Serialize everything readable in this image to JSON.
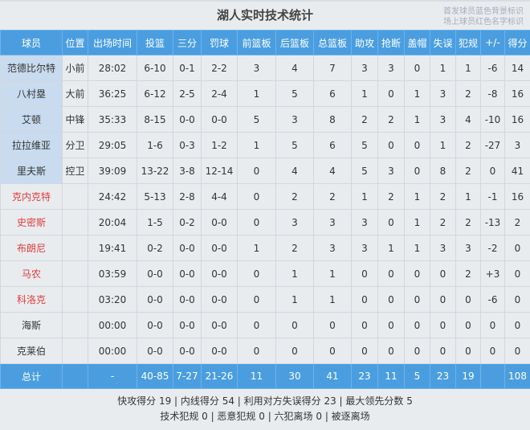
{
  "title": "湖人实时技术统计",
  "legend_note": [
    "首发球员蓝色背景标识",
    "场上球员红色名字标识"
  ],
  "colors": {
    "header": "#4a9ee0",
    "starter_bg": "#c8dbef",
    "oncourt_name": "#e03c3c"
  },
  "columns": [
    "球员",
    "位置",
    "出场时间",
    "投篮",
    "三分",
    "罚球",
    "前篮板",
    "后篮板",
    "总篮板",
    "助攻",
    "抢断",
    "盖帽",
    "失误",
    "犯规",
    "+/-",
    "得分"
  ],
  "players": [
    {
      "starter": true,
      "oncourt": false,
      "cells": [
        "范德比尔特",
        "小前",
        "28:02",
        "6-10",
        "0-1",
        "2-2",
        "3",
        "4",
        "7",
        "3",
        "3",
        "0",
        "1",
        "1",
        "-6",
        "14"
      ]
    },
    {
      "starter": true,
      "oncourt": false,
      "cells": [
        "八村塁",
        "大前",
        "36:25",
        "6-12",
        "2-5",
        "2-4",
        "1",
        "5",
        "6",
        "1",
        "0",
        "1",
        "3",
        "2",
        "-8",
        "16"
      ]
    },
    {
      "starter": true,
      "oncourt": false,
      "cells": [
        "艾顿",
        "中锋",
        "35:33",
        "8-15",
        "0-0",
        "0-0",
        "5",
        "3",
        "8",
        "2",
        "2",
        "1",
        "3",
        "4",
        "-10",
        "16"
      ]
    },
    {
      "starter": true,
      "oncourt": false,
      "cells": [
        "拉拉维亚",
        "分卫",
        "29:05",
        "1-6",
        "0-3",
        "1-2",
        "1",
        "5",
        "6",
        "5",
        "0",
        "0",
        "1",
        "2",
        "-27",
        "3"
      ]
    },
    {
      "starter": true,
      "oncourt": false,
      "cells": [
        "里夫斯",
        "控卫",
        "39:09",
        "13-22",
        "3-8",
        "12-14",
        "0",
        "4",
        "4",
        "5",
        "3",
        "0",
        "8",
        "2",
        "0",
        "41"
      ]
    },
    {
      "starter": false,
      "oncourt": true,
      "cells": [
        "克内克特",
        "",
        "24:42",
        "5-13",
        "2-8",
        "4-4",
        "0",
        "2",
        "2",
        "1",
        "2",
        "1",
        "2",
        "1",
        "-1",
        "16"
      ]
    },
    {
      "starter": false,
      "oncourt": true,
      "cells": [
        "史密斯",
        "",
        "20:04",
        "1-5",
        "0-2",
        "0-0",
        "0",
        "3",
        "3",
        "3",
        "0",
        "1",
        "2",
        "2",
        "-13",
        "2"
      ]
    },
    {
      "starter": false,
      "oncourt": true,
      "cells": [
        "布朗尼",
        "",
        "19:41",
        "0-2",
        "0-0",
        "0-0",
        "1",
        "2",
        "3",
        "3",
        "1",
        "1",
        "3",
        "3",
        "-2",
        "0"
      ]
    },
    {
      "starter": false,
      "oncourt": true,
      "cells": [
        "马农",
        "",
        "03:59",
        "0-0",
        "0-0",
        "0-0",
        "0",
        "1",
        "1",
        "0",
        "0",
        "0",
        "0",
        "2",
        "+3",
        "0"
      ]
    },
    {
      "starter": false,
      "oncourt": true,
      "cells": [
        "科洛克",
        "",
        "03:20",
        "0-0",
        "0-0",
        "0-0",
        "0",
        "1",
        "1",
        "0",
        "0",
        "0",
        "0",
        "0",
        "-6",
        "0"
      ]
    },
    {
      "starter": false,
      "oncourt": false,
      "cells": [
        "海斯",
        "",
        "00:00",
        "0-0",
        "0-0",
        "0-0",
        "0",
        "0",
        "0",
        "0",
        "0",
        "0",
        "0",
        "0",
        "0",
        "0"
      ]
    },
    {
      "starter": false,
      "oncourt": false,
      "cells": [
        "克莱伯",
        "",
        "00:00",
        "0-0",
        "0-0",
        "0-0",
        "0",
        "0",
        "0",
        "0",
        "0",
        "0",
        "0",
        "0",
        "0",
        "0"
      ]
    }
  ],
  "totals": [
    "总计",
    "",
    "-",
    "40-85",
    "7-27",
    "21-26",
    "11",
    "30",
    "41",
    "23",
    "11",
    "5",
    "23",
    "19",
    "",
    "108"
  ],
  "footer": [
    "快攻得分 19 | 内线得分 54 | 利用对方失误得分 23 | 最大领先分数 5",
    "技术犯规 0 | 恶意犯规 0 | 六犯离场 0 | 被逐离场"
  ]
}
